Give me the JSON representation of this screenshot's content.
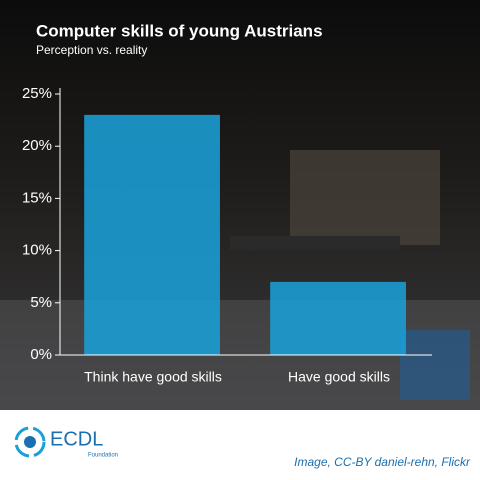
{
  "chart_data": {
    "type": "bar",
    "title": "Computer skills of young Austrians",
    "subtitle": "Perception vs. reality",
    "categories": [
      "Think have good skills",
      "Have good skills"
    ],
    "values": [
      23,
      7
    ],
    "color": "#1a9fd6",
    "ylim": [
      0,
      25
    ],
    "yticks": [
      {
        "value": 0,
        "label": "0%"
      },
      {
        "value": 5,
        "label": "5%"
      },
      {
        "value": 10,
        "label": "10%"
      },
      {
        "value": 15,
        "label": "15%"
      },
      {
        "value": 20,
        "label": "20%"
      },
      {
        "value": 25,
        "label": "25%"
      }
    ]
  },
  "footer": {
    "logo_text": "ECDL",
    "logo_subtext": "Foundation",
    "credit": "Image, CC-BY daniel-rehn, Flickr"
  }
}
